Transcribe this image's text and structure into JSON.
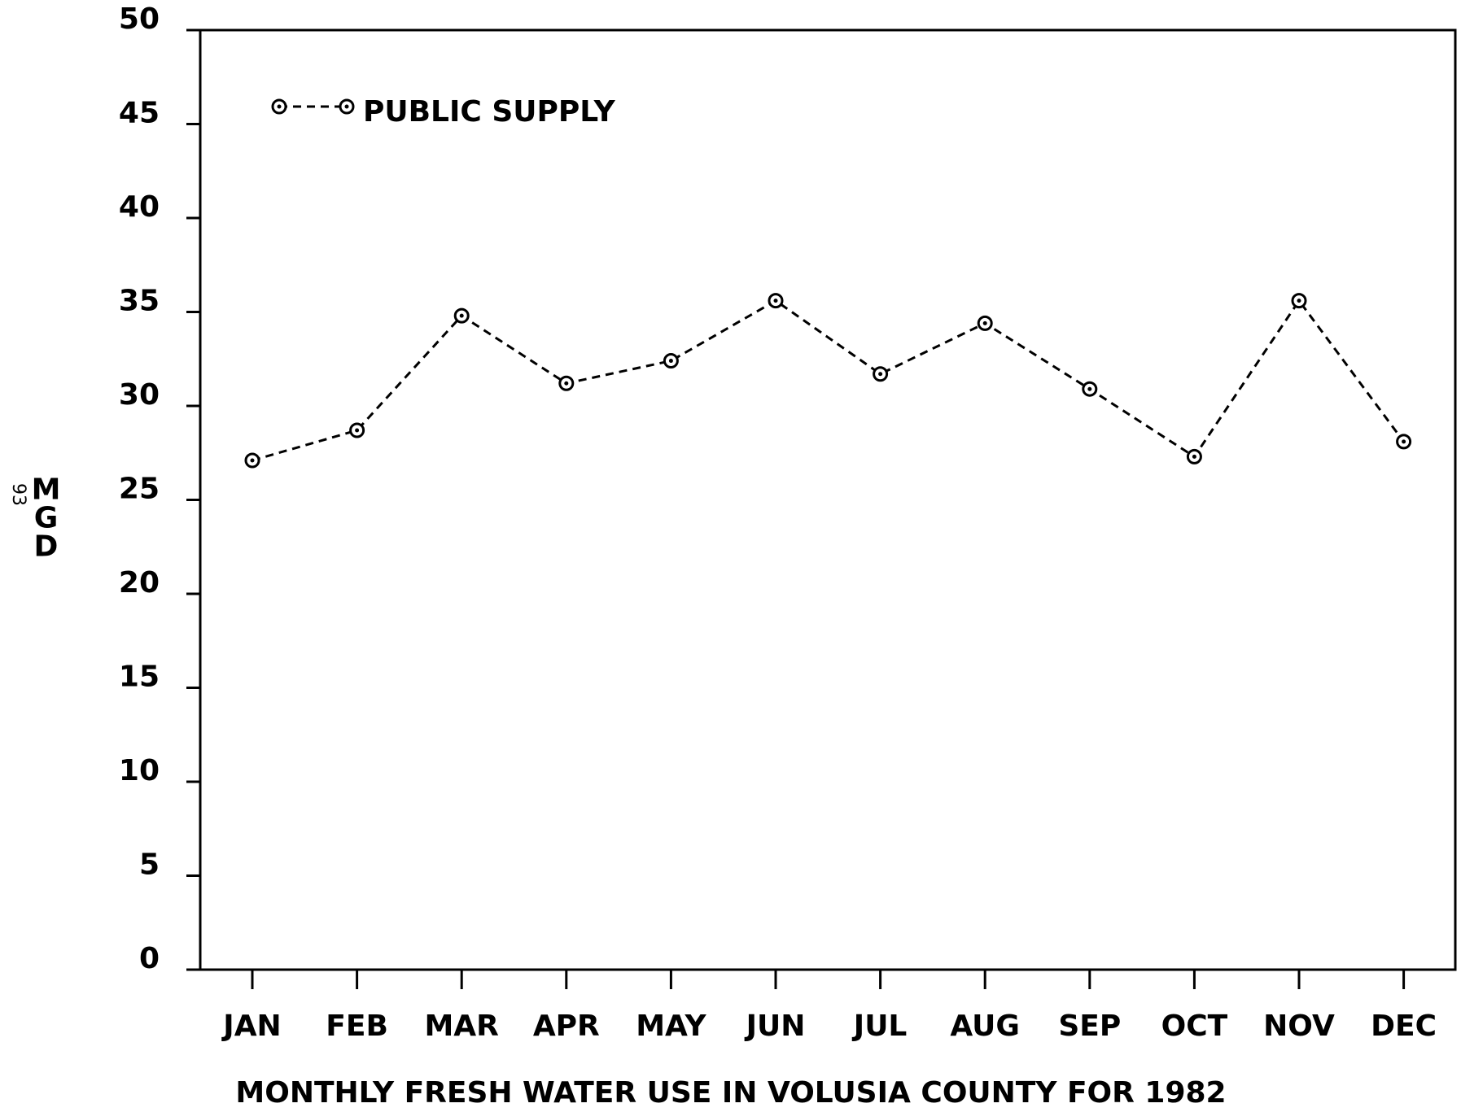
{
  "chart_data": {
    "type": "line",
    "title": "MONTHLY FRESH WATER USE IN VOLUSIA COUNTY FOR 1982",
    "y_label": "MGD",
    "annotation": "93",
    "categories": [
      "JAN",
      "FEB",
      "MAR",
      "APR",
      "MAY",
      "JUN",
      "JUL",
      "AUG",
      "SEP",
      "OCT",
      "NOV",
      "DEC"
    ],
    "series": [
      {
        "name": "PUBLIC SUPPLY",
        "color": "#000000",
        "values": [
          27.1,
          28.7,
          34.8,
          31.2,
          32.4,
          35.6,
          31.7,
          34.4,
          30.9,
          27.3,
          35.6,
          28.1
        ]
      }
    ],
    "ylim": [
      0,
      50
    ],
    "yticks": [
      0,
      5,
      10,
      15,
      20,
      25,
      30,
      35,
      40,
      45,
      50
    ],
    "grid": false,
    "legend": "upper left"
  }
}
